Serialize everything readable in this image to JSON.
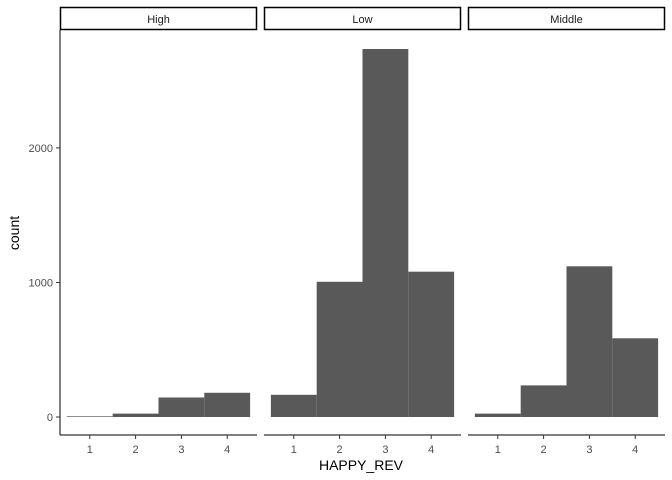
{
  "chart_data": {
    "type": "bar",
    "subtype": "faceted-histogram",
    "xlabel": "HAPPY_REV",
    "ylabel": "count",
    "ylim": [
      0,
      2850
    ],
    "y_ticks": [
      0,
      1000,
      2000
    ],
    "y_tick_labels": [
      "0",
      "1000",
      "2000"
    ],
    "x_ticks": [
      1,
      2,
      3,
      4
    ],
    "x_tick_labels": [
      "1",
      "2",
      "3",
      "4"
    ],
    "xlim": [
      0.35,
      4.65
    ],
    "grid": false,
    "bar_color": "#595959",
    "facets": [
      {
        "label": "High",
        "values": [
          5,
          25,
          145,
          180
        ]
      },
      {
        "label": "Low",
        "values": [
          165,
          1005,
          2735,
          1080
        ]
      },
      {
        "label": "Middle",
        "values": [
          25,
          235,
          1120,
          585
        ]
      }
    ]
  }
}
